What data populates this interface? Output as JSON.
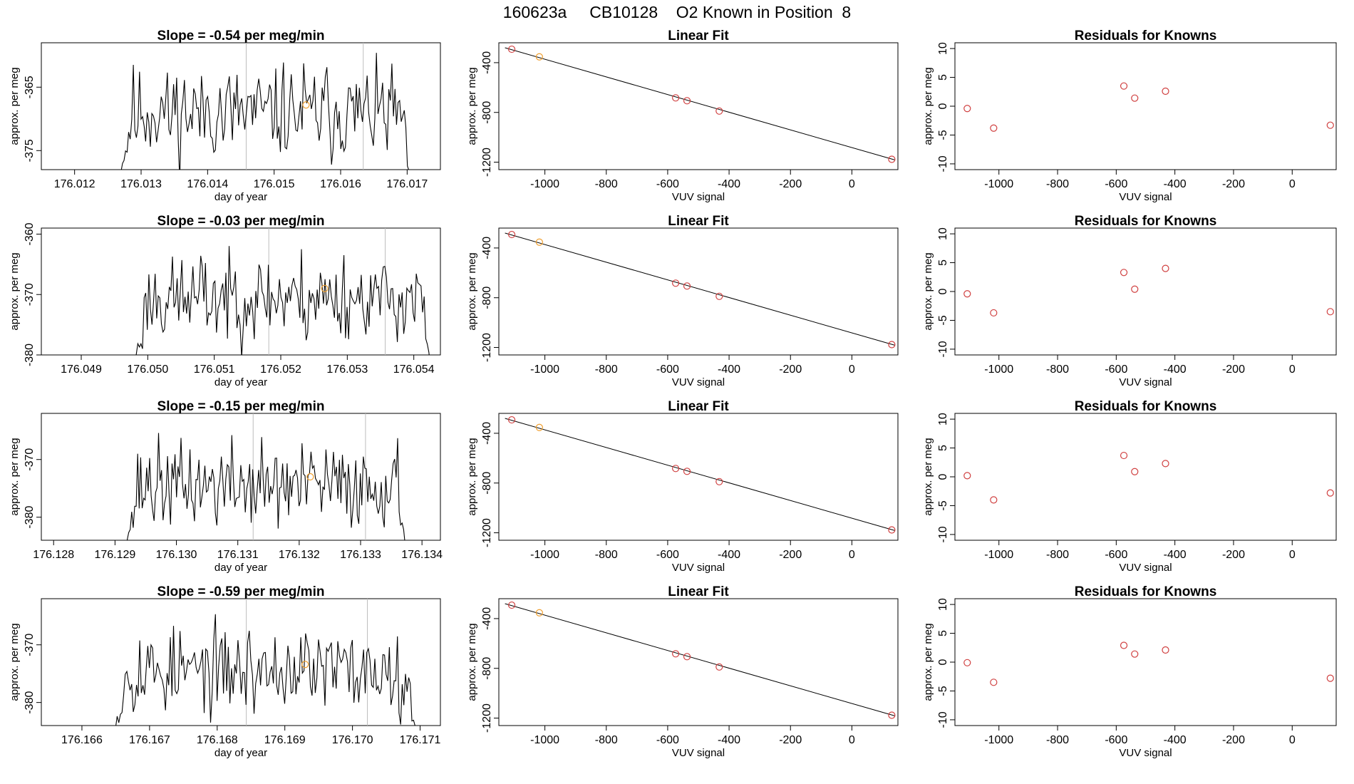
{
  "main_title": "160623a     CB10128    O2 Known in Position  8",
  "colors": {
    "line": "#000000",
    "grid": "#bdbdbd",
    "known": "#d04040",
    "highlight": "#f0a030"
  },
  "chart_data": [
    {
      "type": "line",
      "title": "Slope =  -0.54  per meg/min",
      "xlabel": "day of year",
      "ylabel": "approx. per meg",
      "xlim": [
        176.0115,
        176.0175
      ],
      "ylim": [
        -378,
        -358
      ],
      "xticks": [
        "176.012",
        "176.013",
        "176.014",
        "176.015",
        "176.016",
        "176.017"
      ],
      "yticks": [
        "-365",
        "-375"
      ],
      "data_start": 176.01265,
      "data_end": 176.01705,
      "n_points": 190,
      "baseline": -369,
      "amplitude": 3.5,
      "seed": 11,
      "ref_lines": [
        176.01458,
        176.01634
      ],
      "highlight_point": {
        "x": 176.01548,
        "y": -367.8
      }
    },
    {
      "type": "scatter",
      "title": "Linear Fit",
      "xlabel": "VUV signal",
      "ylabel": "approx. per meg",
      "xlim": [
        -1150,
        150
      ],
      "ylim": [
        -1260,
        -240
      ],
      "xticks": [
        "-1000",
        "-800",
        "-600",
        "-400",
        "-200",
        "0"
      ],
      "yticks": [
        "-400",
        "-800",
        "-1200"
      ],
      "points": [
        {
          "x": -1108,
          "y": -292
        },
        {
          "x": -1018,
          "y": -353
        },
        {
          "x": -574,
          "y": -683
        },
        {
          "x": -537,
          "y": -706
        },
        {
          "x": -432,
          "y": -789
        },
        {
          "x": 130,
          "y": -1177
        }
      ],
      "highlight_index": 1,
      "fit_line": [
        [
          -1130,
          -280
        ],
        [
          140,
          -1182
        ]
      ]
    },
    {
      "type": "scatter",
      "title": "Residuals for Knowns",
      "xlabel": "VUV signal",
      "ylabel": "approx. per meg",
      "xlim": [
        -1150,
        150
      ],
      "ylim": [
        -11,
        11
      ],
      "xticks": [
        "-1000",
        "-800",
        "-600",
        "-400",
        "-200",
        "0"
      ],
      "yticks": [
        "10",
        "5",
        "0",
        "-5",
        "-10"
      ],
      "points": [
        {
          "x": -1108,
          "y": -0.4
        },
        {
          "x": -1018,
          "y": -3.8
        },
        {
          "x": -574,
          "y": 3.5
        },
        {
          "x": -537,
          "y": 1.4
        },
        {
          "x": -432,
          "y": 2.6
        },
        {
          "x": 130,
          "y": -3.3
        }
      ]
    },
    {
      "type": "line",
      "title": "Slope =  -0.03  per meg/min",
      "xlabel": "day of year",
      "ylabel": "approx. per meg",
      "xlim": [
        176.0484,
        176.0544
      ],
      "ylim": [
        -380,
        -359
      ],
      "xticks": [
        "176.049",
        "176.050",
        "176.051",
        "176.052",
        "176.053",
        "176.054"
      ],
      "yticks": [
        "-360",
        "-370",
        "-380"
      ],
      "data_start": 176.04978,
      "data_end": 176.05425,
      "n_points": 190,
      "baseline": -370.5,
      "amplitude": 3.5,
      "seed": 23,
      "ref_lines": [
        176.05182,
        176.05357
      ],
      "highlight_point": {
        "x": 176.05266,
        "y": -369.0
      }
    },
    {
      "type": "scatter",
      "title": "Linear Fit",
      "xlabel": "VUV signal",
      "ylabel": "approx. per meg",
      "xlim": [
        -1150,
        150
      ],
      "ylim": [
        -1260,
        -240
      ],
      "xticks": [
        "-1000",
        "-800",
        "-600",
        "-400",
        "-200",
        "0"
      ],
      "yticks": [
        "-400",
        "-800",
        "-1200"
      ],
      "points": [
        {
          "x": -1108,
          "y": -292
        },
        {
          "x": -1018,
          "y": -353
        },
        {
          "x": -574,
          "y": -683
        },
        {
          "x": -537,
          "y": -706
        },
        {
          "x": -432,
          "y": -789
        },
        {
          "x": 130,
          "y": -1177
        }
      ],
      "highlight_index": 1,
      "fit_line": [
        [
          -1130,
          -280
        ],
        [
          140,
          -1182
        ]
      ]
    },
    {
      "type": "scatter",
      "title": "Residuals for Knowns",
      "xlabel": "VUV signal",
      "ylabel": "approx. per meg",
      "xlim": [
        -1150,
        150
      ],
      "ylim": [
        -11,
        11
      ],
      "xticks": [
        "-1000",
        "-800",
        "-600",
        "-400",
        "-200",
        "0"
      ],
      "yticks": [
        "10",
        "5",
        "0",
        "-5",
        "-10"
      ],
      "points": [
        {
          "x": -1108,
          "y": -0.4
        },
        {
          "x": -1018,
          "y": -3.7
        },
        {
          "x": -574,
          "y": 3.3
        },
        {
          "x": -537,
          "y": 0.4
        },
        {
          "x": -432,
          "y": 4.0
        },
        {
          "x": 130,
          "y": -3.5
        }
      ]
    },
    {
      "type": "line",
      "title": "Slope =  -0.15  per meg/min",
      "xlabel": "day of year",
      "ylabel": "approx. per meg",
      "xlim": [
        176.1278,
        176.1343
      ],
      "ylim": [
        -384,
        -362
      ],
      "xticks": [
        "176.128",
        "176.129",
        "176.130",
        "176.131",
        "176.132",
        "176.133",
        "176.134"
      ],
      "yticks": [
        "-370",
        "-380"
      ],
      "data_start": 176.12915,
      "data_end": 176.13375,
      "n_points": 190,
      "baseline": -374.5,
      "amplitude": 3.5,
      "seed": 37,
      "ref_lines": [
        176.13125,
        176.13308
      ],
      "highlight_point": {
        "x": 176.13218,
        "y": -373.0
      }
    },
    {
      "type": "scatter",
      "title": "Linear Fit",
      "xlabel": "VUV signal",
      "ylabel": "approx. per meg",
      "xlim": [
        -1150,
        150
      ],
      "ylim": [
        -1260,
        -240
      ],
      "xticks": [
        "-1000",
        "-800",
        "-600",
        "-400",
        "-200",
        "0"
      ],
      "yticks": [
        "-400",
        "-800",
        "-1200"
      ],
      "points": [
        {
          "x": -1108,
          "y": -292
        },
        {
          "x": -1018,
          "y": -353
        },
        {
          "x": -574,
          "y": -683
        },
        {
          "x": -537,
          "y": -706
        },
        {
          "x": -432,
          "y": -789
        },
        {
          "x": 130,
          "y": -1177
        }
      ],
      "highlight_index": 1,
      "fit_line": [
        [
          -1130,
          -280
        ],
        [
          140,
          -1182
        ]
      ]
    },
    {
      "type": "scatter",
      "title": "Residuals for Knowns",
      "xlabel": "VUV signal",
      "ylabel": "approx. per meg",
      "xlim": [
        -1150,
        150
      ],
      "ylim": [
        -11,
        11
      ],
      "xticks": [
        "-1000",
        "-800",
        "-600",
        "-400",
        "-200",
        "0"
      ],
      "yticks": [
        "10",
        "5",
        "0",
        "-5",
        "-10"
      ],
      "points": [
        {
          "x": -1108,
          "y": 0.2
        },
        {
          "x": -1018,
          "y": -4.0
        },
        {
          "x": -574,
          "y": 3.7
        },
        {
          "x": -537,
          "y": 0.9
        },
        {
          "x": -432,
          "y": 2.3
        },
        {
          "x": 130,
          "y": -2.8
        }
      ]
    },
    {
      "type": "line",
      "title": "Slope =  -0.59  per meg/min",
      "xlabel": "day of year",
      "ylabel": "approx. per meg",
      "xlim": [
        176.1654,
        176.1713
      ],
      "ylim": [
        -384,
        -362
      ],
      "xticks": [
        "176.166",
        "176.167",
        "176.168",
        "176.169",
        "176.170",
        "176.171"
      ],
      "yticks": [
        "-370",
        "-380"
      ],
      "data_start": 176.16645,
      "data_end": 176.17095,
      "n_points": 190,
      "baseline": -374.5,
      "amplitude": 3.5,
      "seed": 53,
      "ref_lines": [
        176.16843,
        176.17022
      ],
      "highlight_point": {
        "x": 176.1693,
        "y": -373.4
      }
    },
    {
      "type": "scatter",
      "title": "Linear Fit",
      "xlabel": "VUV signal",
      "ylabel": "approx. per meg",
      "xlim": [
        -1150,
        150
      ],
      "ylim": [
        -1260,
        -240
      ],
      "xticks": [
        "-1000",
        "-800",
        "-600",
        "-400",
        "-200",
        "0"
      ],
      "yticks": [
        "-400",
        "-800",
        "-1200"
      ],
      "points": [
        {
          "x": -1108,
          "y": -292
        },
        {
          "x": -1018,
          "y": -353
        },
        {
          "x": -574,
          "y": -683
        },
        {
          "x": -537,
          "y": -706
        },
        {
          "x": -432,
          "y": -789
        },
        {
          "x": 130,
          "y": -1177
        }
      ],
      "highlight_index": 1,
      "fit_line": [
        [
          -1130,
          -280
        ],
        [
          140,
          -1182
        ]
      ]
    },
    {
      "type": "scatter",
      "title": "Residuals for Knowns",
      "xlabel": "VUV signal",
      "ylabel": "approx. per meg",
      "xlim": [
        -1150,
        150
      ],
      "ylim": [
        -11,
        11
      ],
      "xticks": [
        "-1000",
        "-800",
        "-600",
        "-400",
        "-200",
        "0"
      ],
      "yticks": [
        "10",
        "5",
        "0",
        "-5",
        "-10"
      ],
      "points": [
        {
          "x": -1108,
          "y": -0.1
        },
        {
          "x": -1018,
          "y": -3.5
        },
        {
          "x": -574,
          "y": 2.9
        },
        {
          "x": -537,
          "y": 1.4
        },
        {
          "x": -432,
          "y": 2.1
        },
        {
          "x": 130,
          "y": -2.8
        }
      ]
    }
  ]
}
